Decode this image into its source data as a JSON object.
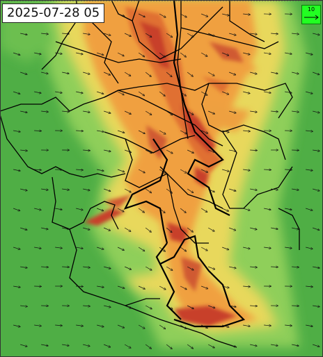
{
  "timestamp": "2025-07-28 05",
  "wind_legend": {
    "value": "10",
    "arrow_icon": "arrow-right-icon"
  },
  "colors": {
    "background_green": "#4fae45",
    "light_green": "#8fcf5a",
    "yellow": "#e8d85c",
    "orange": "#f0a040",
    "dark_orange": "#e07030",
    "red": "#c8402a",
    "border": "#000000",
    "legend_green": "#22ff22"
  }
}
